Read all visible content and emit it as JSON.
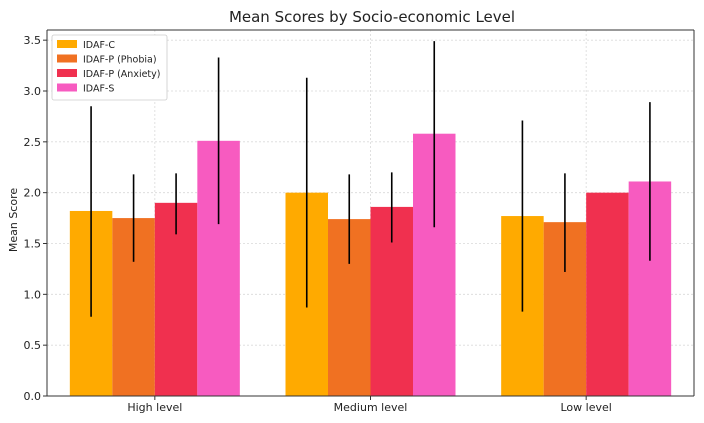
{
  "chart_data": {
    "type": "bar",
    "title": "Mean Scores by Socio-economic Level",
    "xlabel": "",
    "ylabel": "Mean Score",
    "ylim": [
      0,
      3.6
    ],
    "yticks": [
      "0.0",
      "0.5",
      "1.0",
      "1.5",
      "2.0",
      "2.5",
      "3.0",
      "3.5"
    ],
    "grid": true,
    "legend_position": "top-left",
    "categories": [
      "High level",
      "Medium level",
      "Low level"
    ],
    "series": [
      {
        "name": "IDAF-C",
        "color": "#FFAA00",
        "values": [
          1.82,
          2.0,
          1.77
        ],
        "error_low": [
          0.78,
          0.87,
          0.83
        ],
        "error_high": [
          2.85,
          3.13,
          2.71
        ]
      },
      {
        "name": "IDAF-P (Phobia)",
        "color": "#F07122",
        "values": [
          1.75,
          1.74,
          1.71
        ],
        "error_low": [
          1.32,
          1.3,
          1.22
        ],
        "error_high": [
          2.18,
          2.18,
          2.19
        ]
      },
      {
        "name": "IDAF-P (Anxiety)",
        "color": "#F0304F",
        "values": [
          1.9,
          1.86,
          2.0
        ],
        "error_low": [
          1.59,
          1.51,
          null
        ],
        "error_high": [
          2.19,
          2.2,
          null
        ]
      },
      {
        "name": "IDAF-S",
        "color": "#F75BC0",
        "values": [
          2.51,
          2.58,
          2.11
        ],
        "error_low": [
          1.69,
          1.66,
          1.33
        ],
        "error_high": [
          3.33,
          3.49,
          2.89
        ]
      }
    ]
  }
}
